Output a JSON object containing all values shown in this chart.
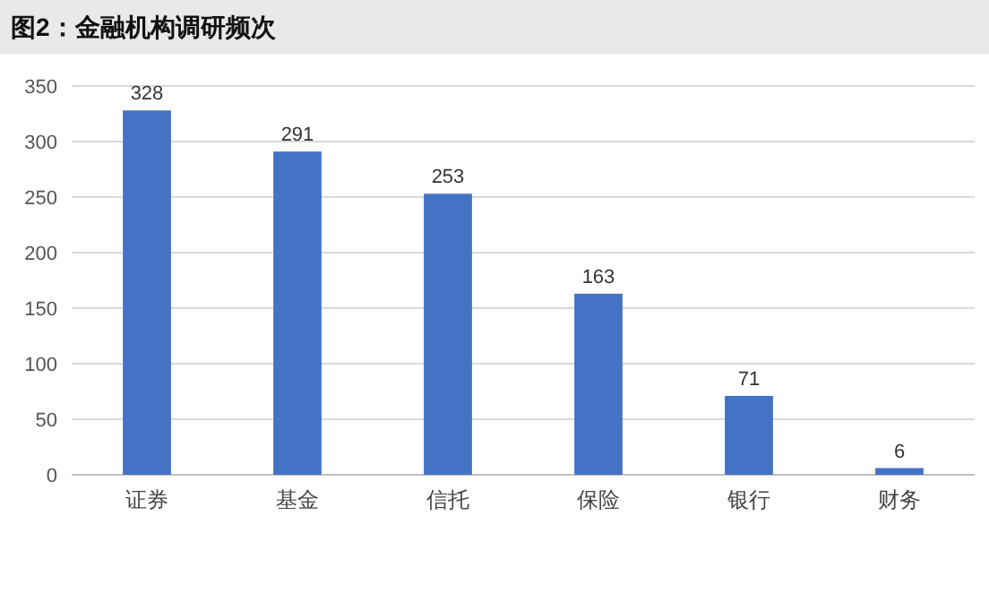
{
  "chart_data": {
    "type": "bar",
    "title": "图2：金融机构调研频次",
    "categories": [
      "证券",
      "基金",
      "信托",
      "保险",
      "银行",
      "财务"
    ],
    "values": [
      328,
      291,
      253,
      163,
      71,
      6
    ],
    "color": "#4472c4",
    "ylim": [
      0,
      350
    ],
    "yticks": [
      0,
      50,
      100,
      150,
      200,
      250,
      300,
      350
    ],
    "grid": "y",
    "data_labels": true
  }
}
